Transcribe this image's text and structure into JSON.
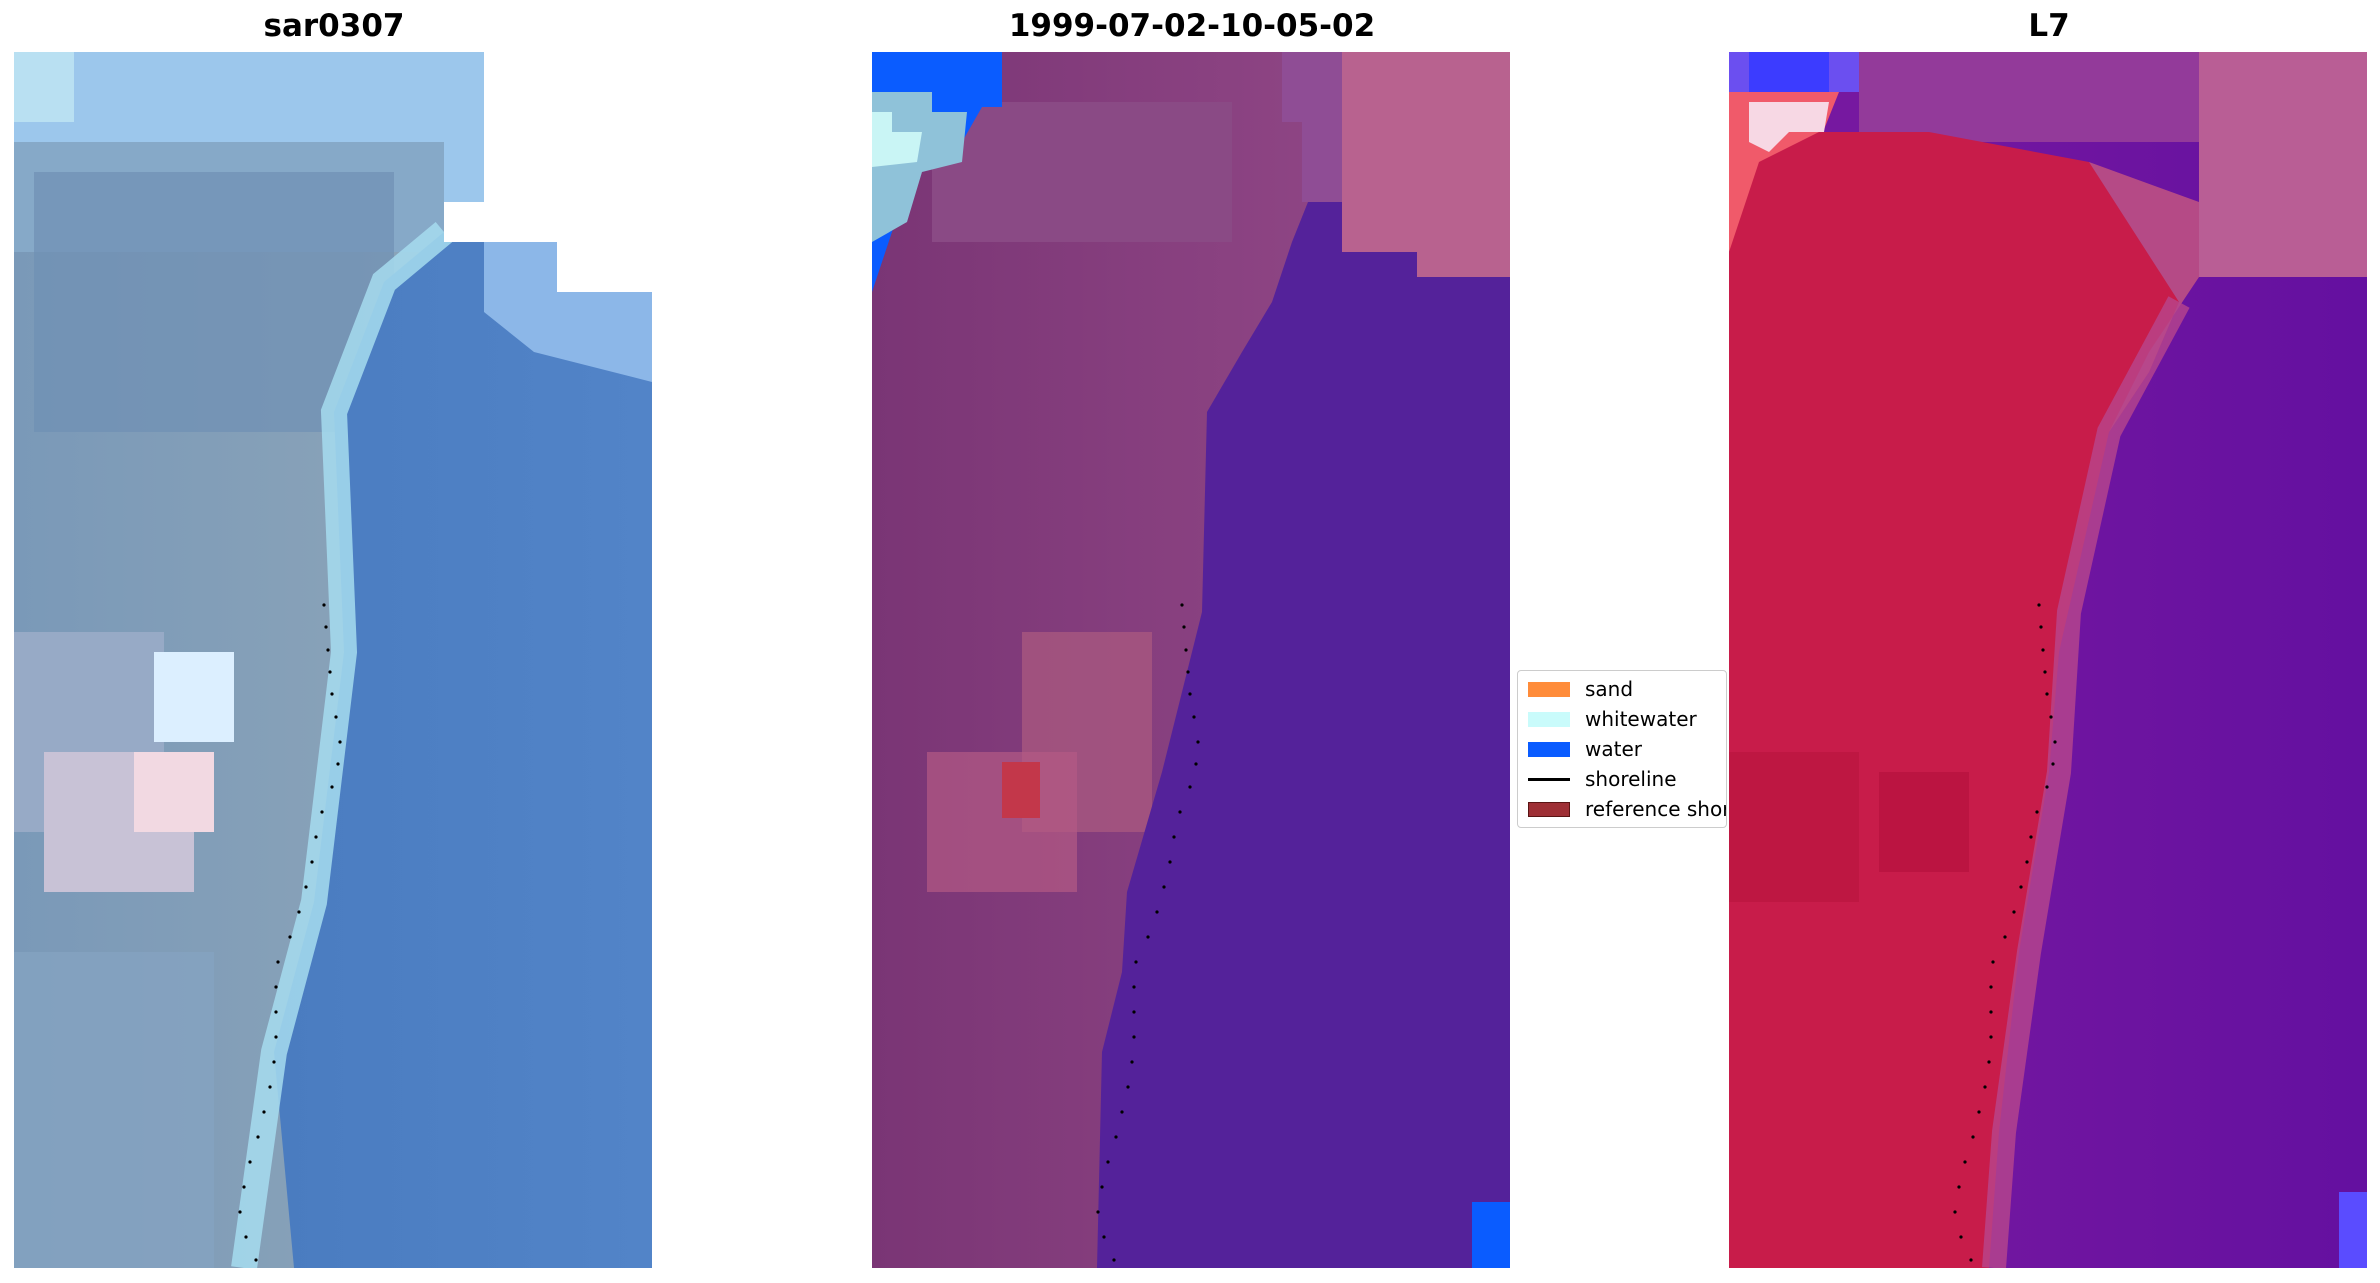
{
  "panels": [
    {
      "title": "sar0307",
      "view": "rgb-image"
    },
    {
      "title": "1999-07-02-10-05-02",
      "view": "classified-image"
    },
    {
      "title": "L7",
      "view": "index-image"
    }
  ],
  "legend": {
    "items": [
      {
        "label": "sand",
        "color": "#ff8c3a",
        "kind": "patch"
      },
      {
        "label": "whitewater",
        "color": "#c9fbfb",
        "kind": "patch"
      },
      {
        "label": "water",
        "color": "#0a5cff",
        "kind": "patch"
      },
      {
        "label": "shoreline",
        "color": "#000000",
        "kind": "line"
      },
      {
        "label": "reference shoreline",
        "color": "#9e2f35",
        "kind": "patch"
      }
    ]
  },
  "colors": {
    "rgb_land": "#7f9ab6",
    "rgb_water": "#4f7fbf",
    "rgb_sky": "#9fc8ee",
    "class_land": "#7a3575",
    "class_water": "#54229a",
    "class_pink": "#b8628f",
    "index_land": "#c81c4a",
    "index_water": "#6d169e"
  }
}
